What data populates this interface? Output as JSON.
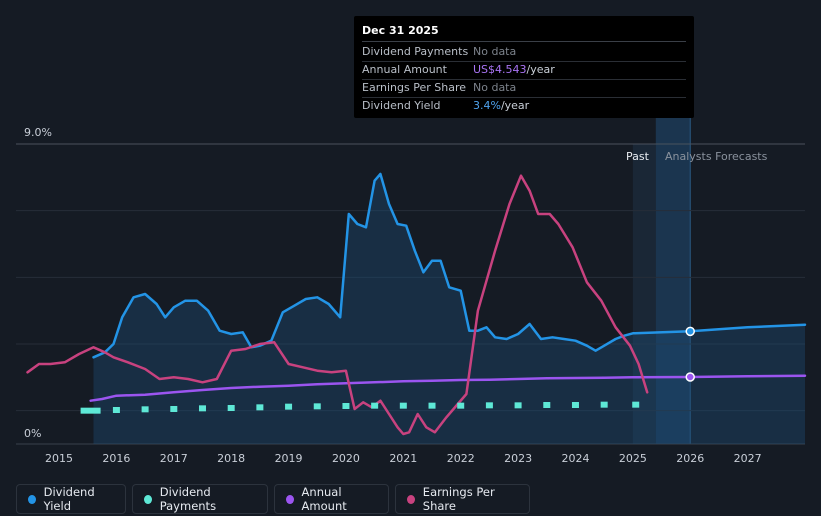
{
  "tooltip": {
    "date": "Dec 31 2025",
    "rows": [
      {
        "label": "Dividend Payments",
        "value": "No data",
        "unit": ""
      },
      {
        "label": "Annual Amount",
        "value": "US$4.543",
        "unit": "/year"
      },
      {
        "label": "Earnings Per Share",
        "value": "No data",
        "unit": ""
      },
      {
        "label": "Dividend Yield",
        "value": "3.4%",
        "unit": "/year"
      }
    ]
  },
  "y_max_label": "9.0%",
  "y_min_label": "0%",
  "past_label": "Past",
  "forecast_label": "Analysts Forecasts",
  "legend": [
    {
      "label": "Dividend Yield",
      "color": "#2394e6"
    },
    {
      "label": "Dividend Payments",
      "color": "#5ee8d6"
    },
    {
      "label": "Annual Amount",
      "color": "#9b55f0"
    },
    {
      "label": "Earnings Per Share",
      "color": "#c8427f"
    }
  ],
  "chart_data": {
    "type": "line",
    "title": "",
    "xlabel": "",
    "ylabel": "",
    "xlim": [
      2014.25,
      2028.0
    ],
    "ylim": [
      0,
      9.0
    ],
    "x_ticks": [
      2015,
      2016,
      2017,
      2018,
      2019,
      2020,
      2021,
      2022,
      2023,
      2024,
      2025,
      2026,
      2027
    ],
    "past_end": 2025.0,
    "highlight": [
      2025.4,
      2026.0
    ],
    "series": [
      {
        "name": "Dividend Yield",
        "color": "#2394e6",
        "fill": true,
        "points": [
          [
            2015.6,
            2.6
          ],
          [
            2015.8,
            2.75
          ],
          [
            2015.95,
            3.0
          ],
          [
            2016.1,
            3.8
          ],
          [
            2016.3,
            4.4
          ],
          [
            2016.5,
            4.5
          ],
          [
            2016.7,
            4.2
          ],
          [
            2016.85,
            3.8
          ],
          [
            2017.0,
            4.1
          ],
          [
            2017.2,
            4.3
          ],
          [
            2017.4,
            4.3
          ],
          [
            2017.6,
            4.0
          ],
          [
            2017.8,
            3.4
          ],
          [
            2018.0,
            3.3
          ],
          [
            2018.2,
            3.35
          ],
          [
            2018.35,
            2.9
          ],
          [
            2018.5,
            2.95
          ],
          [
            2018.7,
            3.1
          ],
          [
            2018.9,
            3.95
          ],
          [
            2019.1,
            4.15
          ],
          [
            2019.3,
            4.35
          ],
          [
            2019.5,
            4.4
          ],
          [
            2019.7,
            4.2
          ],
          [
            2019.9,
            3.8
          ],
          [
            2020.05,
            6.9
          ],
          [
            2020.2,
            6.6
          ],
          [
            2020.35,
            6.5
          ],
          [
            2020.5,
            7.9
          ],
          [
            2020.6,
            8.1
          ],
          [
            2020.75,
            7.2
          ],
          [
            2020.9,
            6.6
          ],
          [
            2021.05,
            6.55
          ],
          [
            2021.2,
            5.8
          ],
          [
            2021.35,
            5.15
          ],
          [
            2021.5,
            5.5
          ],
          [
            2021.65,
            5.5
          ],
          [
            2021.8,
            4.7
          ],
          [
            2022.0,
            4.6
          ],
          [
            2022.15,
            3.4
          ],
          [
            2022.3,
            3.4
          ],
          [
            2022.45,
            3.5
          ],
          [
            2022.6,
            3.2
          ],
          [
            2022.8,
            3.15
          ],
          [
            2023.0,
            3.3
          ],
          [
            2023.2,
            3.6
          ],
          [
            2023.4,
            3.15
          ],
          [
            2023.6,
            3.2
          ],
          [
            2023.8,
            3.15
          ],
          [
            2024.0,
            3.1
          ],
          [
            2024.2,
            2.95
          ],
          [
            2024.35,
            2.8
          ],
          [
            2024.5,
            2.95
          ],
          [
            2024.7,
            3.15
          ],
          [
            2024.85,
            3.25
          ],
          [
            2025.0,
            3.32
          ],
          [
            2026.0,
            3.38
          ],
          [
            2027.0,
            3.5
          ],
          [
            2028.0,
            3.58
          ]
        ]
      },
      {
        "name": "Earnings Per Share",
        "color": "#c8427f",
        "fill": false,
        "points": [
          [
            2014.45,
            2.15
          ],
          [
            2014.65,
            2.4
          ],
          [
            2014.85,
            2.4
          ],
          [
            2015.1,
            2.45
          ],
          [
            2015.35,
            2.7
          ],
          [
            2015.6,
            2.9
          ],
          [
            2015.8,
            2.75
          ],
          [
            2015.95,
            2.6
          ],
          [
            2016.2,
            2.45
          ],
          [
            2016.5,
            2.25
          ],
          [
            2016.75,
            1.95
          ],
          [
            2017.0,
            2.0
          ],
          [
            2017.25,
            1.95
          ],
          [
            2017.5,
            1.85
          ],
          [
            2017.75,
            1.95
          ],
          [
            2018.0,
            2.8
          ],
          [
            2018.25,
            2.85
          ],
          [
            2018.5,
            3.0
          ],
          [
            2018.75,
            3.05
          ],
          [
            2019.0,
            2.4
          ],
          [
            2019.25,
            2.3
          ],
          [
            2019.5,
            2.2
          ],
          [
            2019.75,
            2.15
          ],
          [
            2020.0,
            2.2
          ],
          [
            2020.15,
            1.05
          ],
          [
            2020.3,
            1.25
          ],
          [
            2020.45,
            1.1
          ],
          [
            2020.6,
            1.3
          ],
          [
            2020.75,
            0.9
          ],
          [
            2020.9,
            0.5
          ],
          [
            2021.0,
            0.3
          ],
          [
            2021.1,
            0.35
          ],
          [
            2021.25,
            0.9
          ],
          [
            2021.4,
            0.5
          ],
          [
            2021.55,
            0.35
          ],
          [
            2021.75,
            0.8
          ],
          [
            2021.95,
            1.2
          ],
          [
            2022.1,
            1.5
          ],
          [
            2022.3,
            4.0
          ],
          [
            2022.6,
            5.8
          ],
          [
            2022.85,
            7.2
          ],
          [
            2023.05,
            8.05
          ],
          [
            2023.2,
            7.6
          ],
          [
            2023.35,
            6.9
          ],
          [
            2023.55,
            6.9
          ],
          [
            2023.7,
            6.6
          ],
          [
            2023.95,
            5.9
          ],
          [
            2024.2,
            4.85
          ],
          [
            2024.45,
            4.3
          ],
          [
            2024.7,
            3.5
          ],
          [
            2024.95,
            2.95
          ],
          [
            2025.1,
            2.4
          ],
          [
            2025.25,
            1.55
          ]
        ]
      },
      {
        "name": "Annual Amount",
        "color": "#9b55f0",
        "fill": false,
        "points": [
          [
            2015.55,
            1.3
          ],
          [
            2015.75,
            1.35
          ],
          [
            2016.0,
            1.45
          ],
          [
            2016.5,
            1.48
          ],
          [
            2017.0,
            1.55
          ],
          [
            2017.5,
            1.62
          ],
          [
            2018.0,
            1.68
          ],
          [
            2018.5,
            1.72
          ],
          [
            2019.0,
            1.75
          ],
          [
            2019.5,
            1.79
          ],
          [
            2020.0,
            1.82
          ],
          [
            2020.5,
            1.85
          ],
          [
            2021.0,
            1.88
          ],
          [
            2021.5,
            1.9
          ],
          [
            2022.0,
            1.92
          ],
          [
            2022.5,
            1.93
          ],
          [
            2023.0,
            1.95
          ],
          [
            2023.5,
            1.97
          ],
          [
            2024.0,
            1.98
          ],
          [
            2024.5,
            1.99
          ],
          [
            2025.0,
            2.0
          ],
          [
            2026.0,
            2.01
          ],
          [
            2027.0,
            2.03
          ],
          [
            2028.0,
            2.05
          ]
        ]
      },
      {
        "name": "Dividend Payments",
        "color": "#5ee8d6",
        "fill": false,
        "dashed": true,
        "points": [
          [
            2015.55,
            1.0
          ],
          [
            2016.0,
            1.02
          ],
          [
            2016.5,
            1.04
          ],
          [
            2017.0,
            1.05
          ],
          [
            2017.5,
            1.07
          ],
          [
            2018.0,
            1.08
          ],
          [
            2018.5,
            1.1
          ],
          [
            2019.0,
            1.12
          ],
          [
            2019.5,
            1.13
          ],
          [
            2020.0,
            1.14
          ],
          [
            2020.5,
            1.15
          ],
          [
            2021.0,
            1.15
          ],
          [
            2021.5,
            1.15
          ],
          [
            2022.0,
            1.15
          ],
          [
            2022.5,
            1.16
          ],
          [
            2023.0,
            1.16
          ],
          [
            2023.5,
            1.17
          ],
          [
            2024.0,
            1.17
          ],
          [
            2024.5,
            1.18
          ],
          [
            2025.05,
            1.18
          ]
        ]
      }
    ],
    "markers": [
      {
        "series": "Dividend Yield",
        "x": 2026.0,
        "y": 3.38
      },
      {
        "series": "Annual Amount",
        "x": 2026.0,
        "y": 2.01
      }
    ]
  }
}
